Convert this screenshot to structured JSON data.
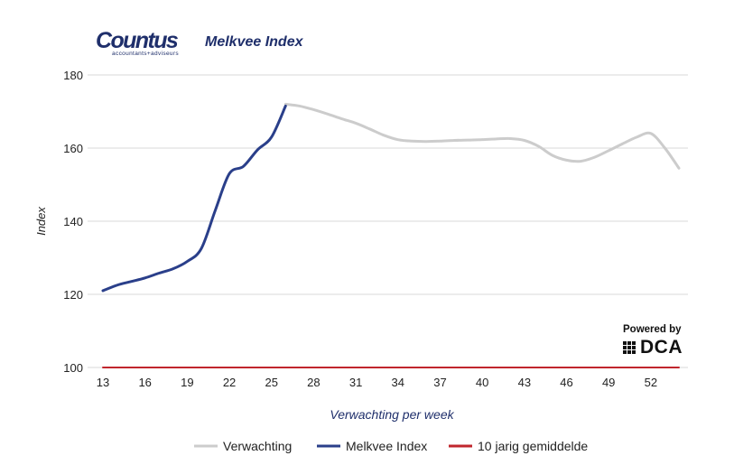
{
  "header": {
    "logo_name": "Countus",
    "logo_tagline": "accountants+adviseurs",
    "title": "Melkvee Index"
  },
  "powered": {
    "label": "Powered by",
    "brand": "DCA"
  },
  "colors": {
    "brand_navy": "#1f2f6b",
    "verwachting": "#cccccc",
    "melkvee": "#2a3f8a",
    "gemiddelde": "#c0262d",
    "grid": "#d9d9d9"
  },
  "chart_data": {
    "type": "line",
    "xlabel": "Verwachting per week",
    "ylabel": "Index",
    "xlim": [
      13,
      54
    ],
    "ylim": [
      100,
      180
    ],
    "yticks": [
      100,
      120,
      140,
      160,
      180
    ],
    "xticks": [
      13,
      16,
      19,
      22,
      25,
      28,
      31,
      34,
      37,
      40,
      43,
      46,
      49,
      52
    ],
    "grid": "horizontal",
    "legend": "bottom",
    "series": [
      {
        "name": "Verwachting",
        "color": "#cccccc",
        "points": [
          [
            26,
            172
          ],
          [
            27,
            171.5
          ],
          [
            28,
            170.5
          ],
          [
            29,
            169.3
          ],
          [
            30,
            168
          ],
          [
            31,
            166.8
          ],
          [
            32,
            165.2
          ],
          [
            33,
            163.5
          ],
          [
            34,
            162.3
          ],
          [
            35,
            161.9
          ],
          [
            36,
            161.8
          ],
          [
            37,
            161.9
          ],
          [
            38,
            162.1
          ],
          [
            39,
            162.2
          ],
          [
            40,
            162.3
          ],
          [
            41,
            162.5
          ],
          [
            42,
            162.6
          ],
          [
            43,
            162.1
          ],
          [
            44,
            160.5
          ],
          [
            45,
            158
          ],
          [
            46,
            156.7
          ],
          [
            47,
            156.4
          ],
          [
            48,
            157.5
          ],
          [
            49,
            159.3
          ],
          [
            50,
            161.2
          ],
          [
            51,
            163
          ],
          [
            52,
            164
          ],
          [
            53,
            160
          ],
          [
            54,
            154.5
          ]
        ]
      },
      {
        "name": "Melkvee Index",
        "color": "#2a3f8a",
        "points": [
          [
            13,
            121
          ],
          [
            14,
            122.5
          ],
          [
            15,
            123.5
          ],
          [
            16,
            124.5
          ],
          [
            17,
            125.8
          ],
          [
            18,
            127
          ],
          [
            19,
            129
          ],
          [
            20,
            132.5
          ],
          [
            21,
            143
          ],
          [
            22,
            153
          ],
          [
            23,
            155
          ],
          [
            24,
            159.5
          ],
          [
            25,
            163
          ],
          [
            26,
            171.5
          ]
        ]
      },
      {
        "name": "10 jarig gemiddelde",
        "color": "#c0262d",
        "points": [
          [
            13,
            100
          ],
          [
            54,
            100
          ]
        ]
      }
    ]
  }
}
